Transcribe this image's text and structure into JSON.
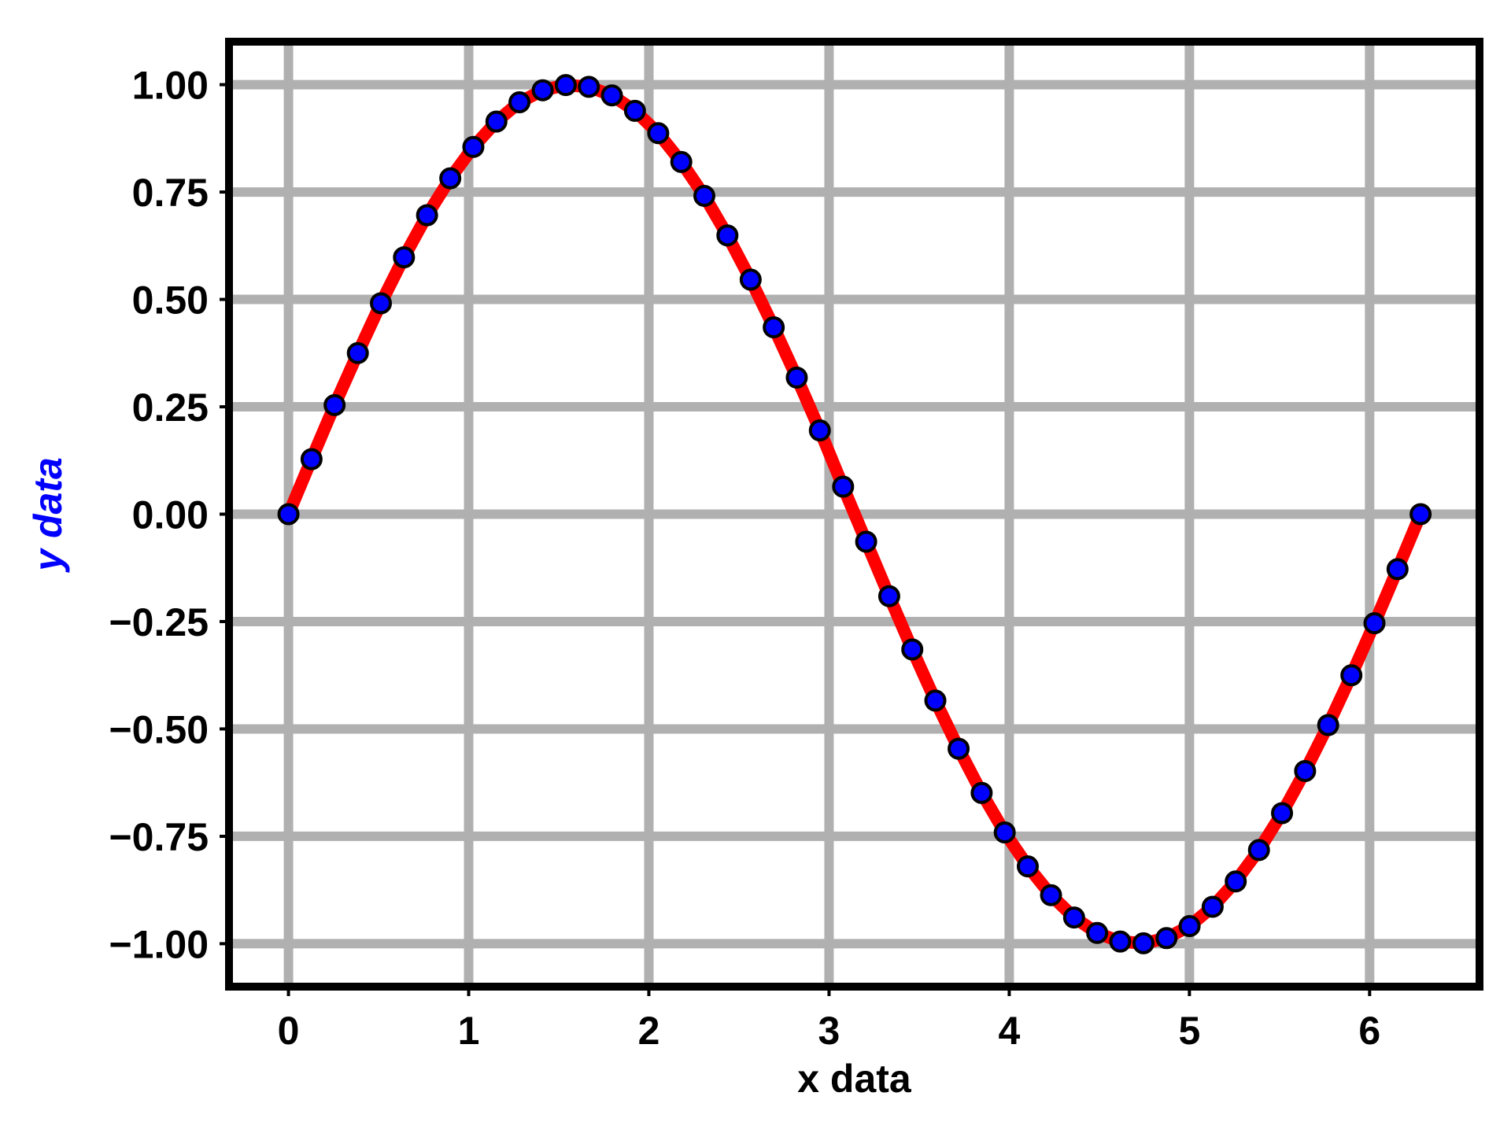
{
  "chart_data": {
    "type": "line",
    "title": "",
    "xlabel": "x data",
    "ylabel": "y data",
    "xlim": [
      -0.33,
      6.61
    ],
    "ylim": [
      -1.1,
      1.1
    ],
    "xticks": [
      0,
      1,
      2,
      3,
      4,
      5,
      6
    ],
    "xtick_labels": [
      "0",
      "1",
      "2",
      "3",
      "4",
      "5",
      "6"
    ],
    "yticks": [
      1.0,
      0.75,
      0.5,
      0.25,
      0.0,
      -0.25,
      -0.5,
      -0.75,
      -1.0
    ],
    "ytick_labels": [
      "1.00",
      "0.75",
      "0.50",
      "0.25",
      "0.00",
      "−0.25",
      "−0.50",
      "−0.75",
      "−1.00"
    ],
    "grid": true,
    "series": [
      {
        "x": [
          0.0,
          0.128,
          0.256,
          0.385,
          0.513,
          0.641,
          0.769,
          0.898,
          1.026,
          1.154,
          1.282,
          1.411,
          1.539,
          1.667,
          1.795,
          1.923,
          2.052,
          2.18,
          2.308,
          2.436,
          2.565,
          2.693,
          2.821,
          2.949,
          3.078,
          3.206,
          3.334,
          3.462,
          3.59,
          3.719,
          3.847,
          3.975,
          4.103,
          4.232,
          4.36,
          4.488,
          4.616,
          4.745,
          4.873,
          5.001,
          5.129,
          5.257,
          5.386,
          5.514,
          5.642,
          5.77,
          5.899,
          6.027,
          6.155,
          6.283
        ],
        "y": [
          0.0,
          0.128,
          0.254,
          0.375,
          0.491,
          0.598,
          0.696,
          0.782,
          0.855,
          0.914,
          0.959,
          0.987,
          0.999,
          0.995,
          0.975,
          0.939,
          0.887,
          0.82,
          0.741,
          0.649,
          0.546,
          0.435,
          0.318,
          0.195,
          0.064,
          -0.064,
          -0.191,
          -0.315,
          -0.434,
          -0.546,
          -0.649,
          -0.741,
          -0.82,
          -0.887,
          -0.939,
          -0.975,
          -0.995,
          -0.999,
          -0.987,
          -0.959,
          -0.914,
          -0.855,
          -0.782,
          -0.696,
          -0.598,
          -0.491,
          -0.375,
          -0.254,
          -0.128,
          0.0
        ]
      }
    ]
  },
  "colors": {
    "line": "#ff0000",
    "marker_fill": "#0000ff",
    "marker_edge": "#000000",
    "grid": "#b0b0b0",
    "frame": "#000000",
    "xlabel": "#000000",
    "ylabel": "#0000ff"
  }
}
